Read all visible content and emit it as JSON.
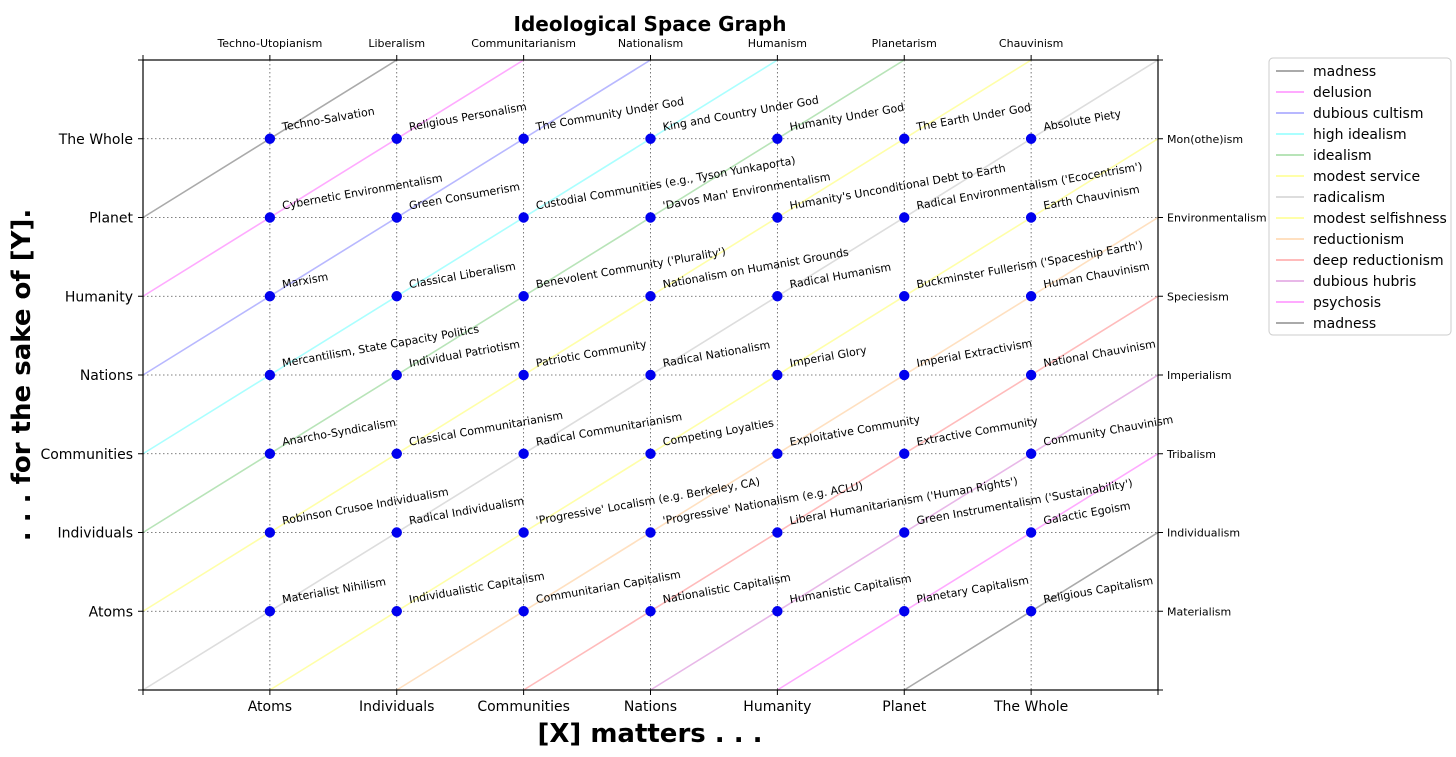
{
  "chart_data": {
    "type": "scatter",
    "title": "Ideological Space Graph",
    "xlabel": "[X] matters . . .",
    "ylabel": ". . . for the sake of [Y].",
    "x_ticks": [
      "Atoms",
      "Individuals",
      "Communities",
      "Nations",
      "Humanity",
      "Planet",
      "The Whole"
    ],
    "y_ticks": [
      "Atoms",
      "Individuals",
      "Communities",
      "Nations",
      "Humanity",
      "Planet",
      "The Whole"
    ],
    "top_ticks": [
      "Techno-Utopianism",
      "Liberalism",
      "Communitarianism",
      "Nationalism",
      "Humanism",
      "Planetarism",
      "Chauvinism"
    ],
    "right_ticks": [
      "Materialism",
      "Individualism",
      "Tribalism",
      "Imperialism",
      "Speciesism",
      "Environmentalism",
      "Mon(othe)ism"
    ],
    "xlim": [
      0,
      8
    ],
    "ylim": [
      0,
      8
    ],
    "grid": true,
    "legend_position": "outside-right",
    "point_color": "#0000ee",
    "labels": [
      [
        "Materialist Nihilism",
        "Robinson Crusoe Individualism",
        "Anarcho-Syndicalism",
        "Mercantilism, State Capacity Politics",
        "Marxism",
        "Cybernetic Environmentalism",
        "Techno-Salvation"
      ],
      [
        "Individualistic Capitalism",
        "Radical Individualism",
        "Classical Communitarianism",
        "Individual Patriotism",
        "Classical Liberalism",
        "Green Consumerism",
        "Religious Personalism"
      ],
      [
        "Communitarian Capitalism",
        "'Progressive' Localism (e.g. Berkeley, CA)",
        "Radical Communitarianism",
        "Patriotic Community",
        "Benevolent Community ('Plurality')",
        "Custodial Communities (e.g., Tyson Yunkaporta)",
        "The Community Under God"
      ],
      [
        "Nationalistic Capitalism",
        "'Progressive' Nationalism (e.g. ACLU)",
        "Competing Loyalties",
        "Radical Nationalism",
        "Nationalism on Humanist Grounds",
        "'Davos Man' Environmentalism",
        "King and Country Under God"
      ],
      [
        "Humanistic Capitalism",
        "Liberal Humanitarianism ('Human Rights')",
        "Exploitative Community",
        "Imperial Glory",
        "Radical Humanism",
        "Humanity's Unconditional Debt to Earth",
        "Humanity Under God"
      ],
      [
        "Planetary Capitalism",
        "Green Instrumentalism ('Sustainability')",
        "Extractive Community",
        "Imperial Extractivism",
        "Buckminster Fullerism ('Spaceship Earth')",
        "Radical Environmentalism ('Ecocentrism')",
        "The Earth Under God"
      ],
      [
        "Religious Capitalism",
        "Galactic Egoism",
        "Community Chauvinism",
        "National Chauvinism",
        "Human Chauvinism",
        "Earth Chauvinism",
        "Absolute Piety"
      ]
    ],
    "diagonals": [
      {
        "name": "madness",
        "offset": 6,
        "color": "#aaaaaa"
      },
      {
        "name": "delusion",
        "offset": 5,
        "color": "#ffaaff"
      },
      {
        "name": "dubious cultism",
        "offset": 4,
        "color": "#b8b8ff"
      },
      {
        "name": "high idealism",
        "offset": 3,
        "color": "#aaffff"
      },
      {
        "name": "idealism",
        "offset": 2,
        "color": "#b8e4b8"
      },
      {
        "name": "modest service",
        "offset": 1,
        "color": "#ffffa8"
      },
      {
        "name": "radicalism",
        "offset": 0,
        "color": "#dddddd"
      },
      {
        "name": "modest selfishness",
        "offset": -1,
        "color": "#ffffa8"
      },
      {
        "name": "reductionism",
        "offset": -2,
        "color": "#ffe0c0"
      },
      {
        "name": "deep reductionism",
        "offset": -3,
        "color": "#ffbbbb"
      },
      {
        "name": "dubious hubris",
        "offset": -4,
        "color": "#e8b8e8"
      },
      {
        "name": "psychosis",
        "offset": -5,
        "color": "#ffaaff"
      },
      {
        "name": "madness",
        "offset": -6,
        "color": "#aaaaaa"
      }
    ]
  }
}
